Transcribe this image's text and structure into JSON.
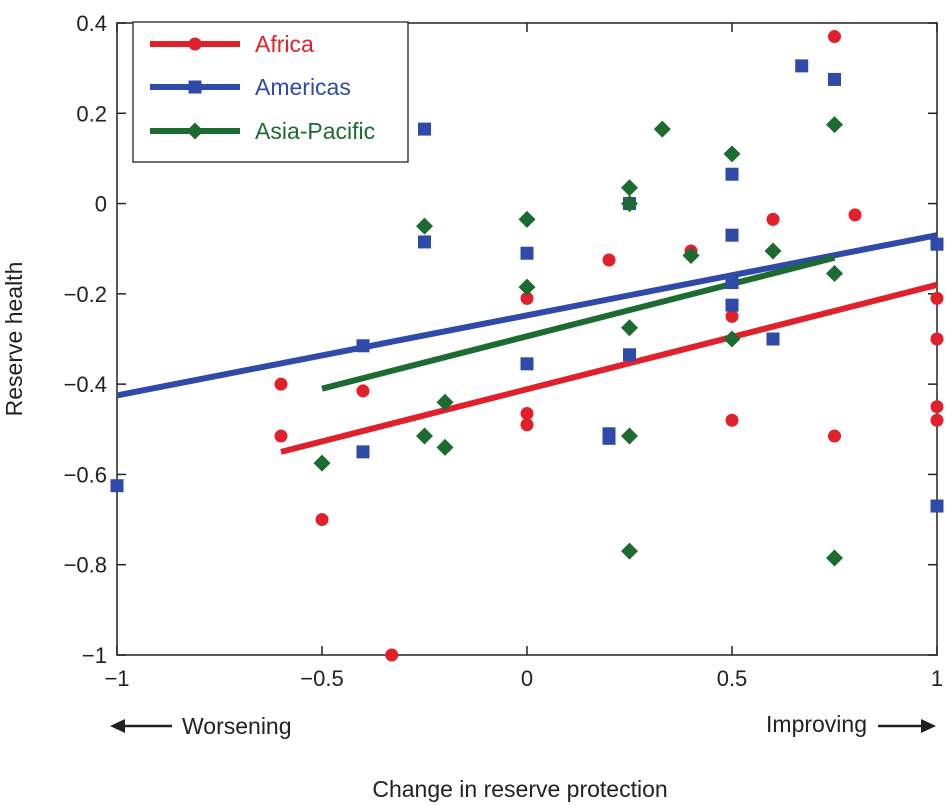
{
  "chart_data": {
    "type": "scatter",
    "xlabel": "Change in reserve protection",
    "ylabel": "Reserve health",
    "xlim": [
      -1,
      1
    ],
    "ylim": [
      -1,
      0.4
    ],
    "xticks": [
      -1,
      -0.5,
      0,
      0.5,
      1
    ],
    "xtick_labels": [
      "−1",
      "−0.5",
      "0",
      "0.5",
      "1"
    ],
    "yticks": [
      -1,
      -0.8,
      -0.6,
      -0.4,
      -0.2,
      0,
      0.2,
      0.4
    ],
    "ytick_labels": [
      "−1",
      "−0.8",
      "−0.6",
      "−0.4",
      "−0.2",
      "0",
      "0.2",
      "0.4"
    ],
    "grid": false,
    "legend_position": "top-left",
    "annotations": {
      "left": "Worsening",
      "right": "Improving"
    },
    "series": [
      {
        "name": "Africa",
        "color": "#e0202a",
        "marker": "circle",
        "points": [
          [
            -0.6,
            -0.4
          ],
          [
            -0.6,
            -0.515
          ],
          [
            -0.5,
            -0.7
          ],
          [
            -0.4,
            -0.415
          ],
          [
            -0.33,
            -1.0
          ],
          [
            0,
            -0.21
          ],
          [
            0,
            -0.465
          ],
          [
            0,
            -0.49
          ],
          [
            0.2,
            -0.125
          ],
          [
            0.4,
            -0.105
          ],
          [
            0.5,
            -0.25
          ],
          [
            0.5,
            -0.48
          ],
          [
            0.6,
            -0.035
          ],
          [
            0.75,
            0.37
          ],
          [
            0.75,
            -0.515
          ],
          [
            0.8,
            -0.025
          ],
          [
            1.0,
            -0.21
          ],
          [
            1.0,
            -0.3
          ],
          [
            1.0,
            -0.45
          ],
          [
            1.0,
            -0.48
          ]
        ],
        "fit": [
          [
            -0.6,
            -0.55
          ],
          [
            1.0,
            -0.18
          ]
        ]
      },
      {
        "name": "Americas",
        "color": "#2f4aa8",
        "marker": "square",
        "points": [
          [
            -1.0,
            -0.625
          ],
          [
            -0.4,
            -0.315
          ],
          [
            -0.4,
            -0.55
          ],
          [
            -0.25,
            0.165
          ],
          [
            -0.25,
            -0.085
          ],
          [
            0,
            -0.11
          ],
          [
            0,
            -0.355
          ],
          [
            0.2,
            -0.51
          ],
          [
            0.2,
            -0.52
          ],
          [
            0.25,
            0.0
          ],
          [
            0.25,
            -0.335
          ],
          [
            0.5,
            0.065
          ],
          [
            0.5,
            -0.07
          ],
          [
            0.5,
            -0.175
          ],
          [
            0.5,
            -0.225
          ],
          [
            0.6,
            -0.3
          ],
          [
            0.67,
            0.305
          ],
          [
            0.75,
            0.275
          ],
          [
            1.0,
            -0.09
          ],
          [
            1.0,
            -0.67
          ]
        ],
        "fit": [
          [
            -1.0,
            -0.425
          ],
          [
            1.0,
            -0.07
          ]
        ]
      },
      {
        "name": "Asia-Pacific",
        "color": "#1c6b30",
        "marker": "diamond",
        "points": [
          [
            -0.5,
            -0.575
          ],
          [
            -0.25,
            -0.05
          ],
          [
            -0.25,
            -0.515
          ],
          [
            -0.2,
            -0.44
          ],
          [
            -0.2,
            -0.54
          ],
          [
            0,
            -0.035
          ],
          [
            0,
            -0.185
          ],
          [
            0.25,
            0.035
          ],
          [
            0.25,
            0.0
          ],
          [
            0.25,
            -0.275
          ],
          [
            0.25,
            -0.515
          ],
          [
            0.25,
            -0.77
          ],
          [
            0.33,
            0.165
          ],
          [
            0.4,
            -0.115
          ],
          [
            0.5,
            0.11
          ],
          [
            0.5,
            -0.3
          ],
          [
            0.6,
            -0.105
          ],
          [
            0.75,
            0.175
          ],
          [
            0.75,
            -0.155
          ],
          [
            0.75,
            -0.785
          ]
        ],
        "fit": [
          [
            -0.5,
            -0.41
          ],
          [
            0.75,
            -0.12
          ]
        ]
      }
    ]
  }
}
